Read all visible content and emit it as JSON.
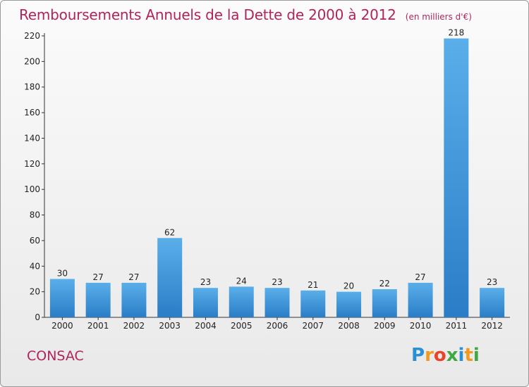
{
  "title": "Remboursements Annuels de la Dette de 2000 à 2012",
  "unit_note": "(en milliers d'€)",
  "city": "CONSAC",
  "brand": "Proxiti",
  "colors": {
    "title": "#b0245c",
    "bar_top": "#5aafea",
    "bar_bottom": "#2a7dc6",
    "axis": "#333333"
  },
  "chart_data": {
    "type": "bar",
    "categories": [
      "2000",
      "2001",
      "2002",
      "2003",
      "2004",
      "2005",
      "2006",
      "2007",
      "2008",
      "2009",
      "2010",
      "2011",
      "2012"
    ],
    "values": [
      30,
      27,
      27,
      62,
      23,
      24,
      23,
      21,
      20,
      22,
      27,
      218,
      23
    ],
    "ylim": [
      0,
      220
    ],
    "yticks": [
      0,
      20,
      40,
      60,
      80,
      100,
      120,
      140,
      160,
      180,
      200,
      220
    ],
    "grid": false,
    "legend": "none"
  }
}
